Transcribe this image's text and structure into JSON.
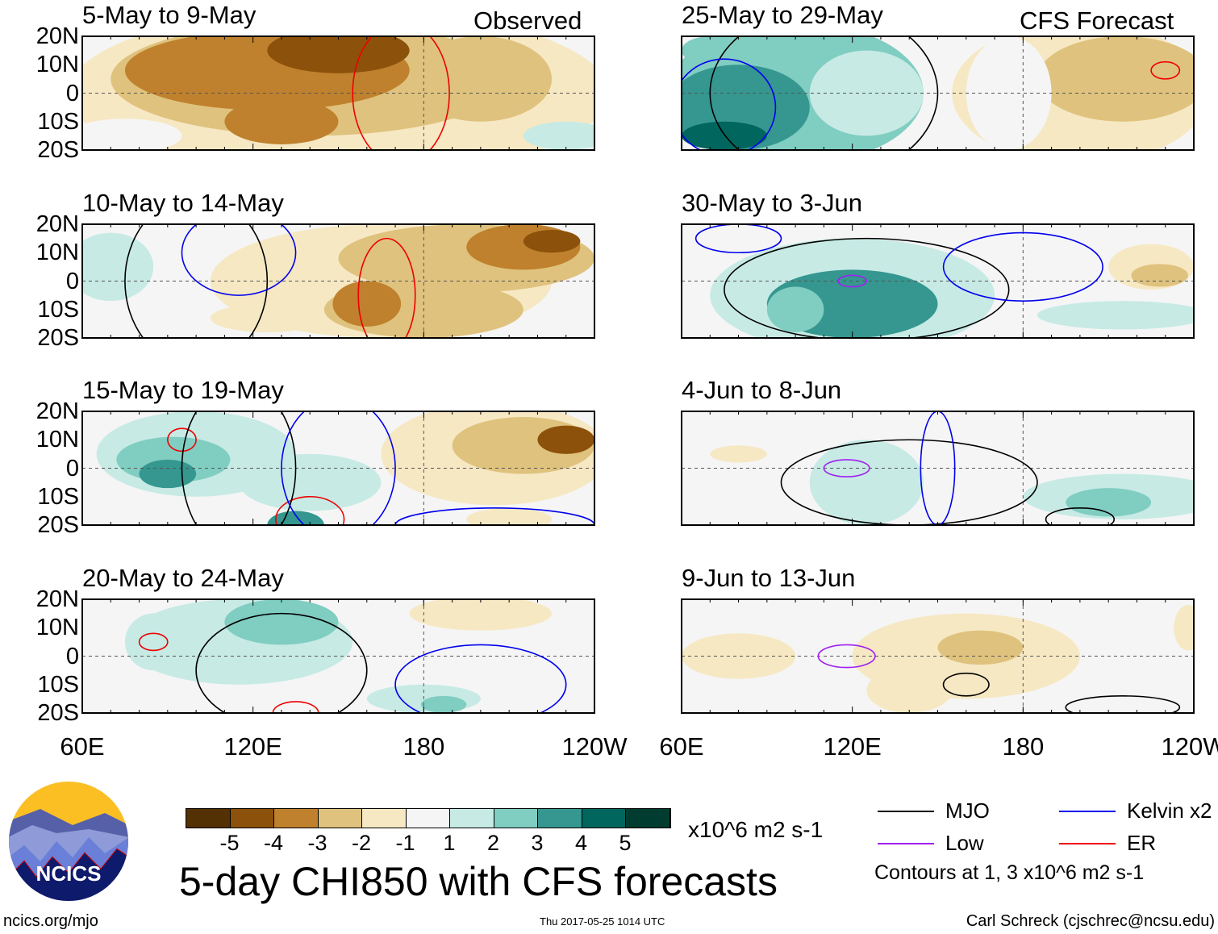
{
  "colors": [
    "#543005",
    "#8c510a",
    "#bf812d",
    "#dfc27d",
    "#f6e8c3",
    "#f5f5f5",
    "#c7eae5",
    "#80cdc1",
    "#35978f",
    "#01665e",
    "#003c30"
  ],
  "contour_colors": {
    "mjo": "#000000",
    "kelvin": "#0000ee",
    "low": "#a020f0",
    "er": "#ee0000"
  },
  "column_labels": {
    "left": "Observed",
    "right": "CFS Forecast"
  },
  "lat_labels": [
    "20N",
    "10N",
    "0",
    "10S",
    "20S"
  ],
  "lon_labels": [
    "60E",
    "120E",
    "180",
    "120W"
  ],
  "panels": [
    {
      "title": "5-May to 9-May",
      "blobs": [
        [
          150,
          0,
          95,
          30,
          4
        ],
        [
          140,
          5,
          70,
          20,
          3
        ],
        [
          125,
          8,
          50,
          14,
          2
        ],
        [
          150,
          15,
          25,
          8,
          1
        ],
        [
          130,
          -10,
          20,
          8,
          2
        ],
        [
          200,
          5,
          25,
          15,
          3
        ],
        [
          75,
          -15,
          20,
          6,
          5
        ],
        [
          230,
          -15,
          15,
          5,
          6
        ]
      ],
      "contours": [
        [
          172,
          0,
          17,
          25,
          "er"
        ]
      ]
    },
    {
      "title": "10-May to 14-May",
      "blobs": [
        [
          70,
          5,
          15,
          12,
          6
        ],
        [
          165,
          0,
          60,
          20,
          4
        ],
        [
          195,
          8,
          45,
          12,
          3
        ],
        [
          180,
          -10,
          35,
          10,
          3
        ],
        [
          215,
          12,
          20,
          8,
          2
        ],
        [
          225,
          14,
          10,
          4,
          1
        ],
        [
          125,
          -13,
          20,
          5,
          4
        ],
        [
          160,
          -8,
          12,
          8,
          2
        ]
      ],
      "contours": [
        [
          100,
          0,
          25,
          30,
          "mjo"
        ],
        [
          115,
          10,
          20,
          15,
          "kelvin"
        ],
        [
          167,
          -5,
          10,
          20,
          "er"
        ]
      ]
    },
    {
      "title": "15-May to 19-May",
      "blobs": [
        [
          100,
          5,
          35,
          15,
          6
        ],
        [
          92,
          3,
          20,
          8,
          7
        ],
        [
          90,
          -2,
          10,
          5,
          8
        ],
        [
          140,
          -5,
          25,
          10,
          6
        ],
        [
          135,
          -20,
          10,
          5,
          8
        ],
        [
          205,
          5,
          40,
          18,
          4
        ],
        [
          215,
          8,
          25,
          10,
          3
        ],
        [
          230,
          10,
          10,
          5,
          1
        ],
        [
          210,
          -18,
          15,
          4,
          4
        ]
      ],
      "contours": [
        [
          95,
          10,
          5,
          4,
          "er"
        ],
        [
          140,
          -18,
          12,
          8,
          "er"
        ],
        [
          115,
          0,
          20,
          30,
          "mjo"
        ],
        [
          150,
          0,
          20,
          25,
          "kelvin"
        ],
        [
          205,
          -20,
          35,
          6,
          "kelvin"
        ]
      ]
    },
    {
      "title": "20-May to 24-May",
      "blobs": [
        [
          115,
          5,
          40,
          15,
          6
        ],
        [
          130,
          12,
          20,
          8,
          7
        ],
        [
          85,
          5,
          10,
          10,
          6
        ],
        [
          180,
          -15,
          20,
          5,
          6
        ],
        [
          187,
          -17,
          8,
          3,
          7
        ],
        [
          200,
          15,
          25,
          6,
          4
        ]
      ],
      "contours": [
        [
          85,
          5,
          5,
          3,
          "er"
        ],
        [
          135,
          -20,
          8,
          4,
          "er"
        ],
        [
          200,
          -10,
          30,
          14,
          "kelvin"
        ],
        [
          130,
          -5,
          30,
          20,
          "mjo"
        ]
      ]
    },
    {
      "title": "25-May to 29-May",
      "blobs": [
        [
          200,
          0,
          45,
          25,
          4
        ],
        [
          215,
          5,
          30,
          15,
          3
        ],
        [
          100,
          0,
          45,
          25,
          7
        ],
        [
          80,
          -5,
          25,
          15,
          8
        ],
        [
          75,
          -15,
          15,
          5,
          9
        ],
        [
          125,
          0,
          20,
          15,
          6
        ],
        [
          175,
          0,
          15,
          20,
          5
        ],
        [
          70,
          15,
          10,
          5,
          7
        ]
      ],
      "contours": [
        [
          110,
          0,
          40,
          30,
          "mjo"
        ],
        [
          75,
          -5,
          18,
          17,
          "kelvin"
        ],
        [
          230,
          8,
          5,
          3,
          "er"
        ]
      ]
    },
    {
      "title": "30-May to 3-Jun",
      "blobs": [
        [
          120,
          -5,
          50,
          20,
          6
        ],
        [
          120,
          -8,
          30,
          12,
          8
        ],
        [
          100,
          -10,
          10,
          8,
          7
        ],
        [
          225,
          5,
          15,
          8,
          4
        ],
        [
          228,
          2,
          10,
          4,
          3
        ],
        [
          215,
          -12,
          30,
          5,
          6
        ]
      ],
      "contours": [
        [
          125,
          -3,
          50,
          18,
          "mjo"
        ],
        [
          120,
          0,
          5,
          2,
          "low"
        ],
        [
          80,
          15,
          15,
          5,
          "kelvin"
        ],
        [
          180,
          5,
          28,
          12,
          "kelvin"
        ]
      ]
    },
    {
      "title": "4-Jun to 8-Jun",
      "blobs": [
        [
          80,
          5,
          10,
          3,
          4
        ],
        [
          125,
          -5,
          20,
          15,
          6
        ],
        [
          215,
          -10,
          35,
          8,
          6
        ],
        [
          210,
          -12,
          15,
          5,
          7
        ]
      ],
      "contours": [
        [
          140,
          -5,
          45,
          15,
          "mjo"
        ],
        [
          118,
          0,
          8,
          3,
          "low"
        ],
        [
          150,
          0,
          6,
          20,
          "kelvin"
        ],
        [
          200,
          -18,
          12,
          4,
          "mjo"
        ]
      ]
    },
    {
      "title": "9-Jun to 13-Jun",
      "blobs": [
        [
          160,
          0,
          40,
          15,
          4
        ],
        [
          165,
          3,
          15,
          6,
          3
        ],
        [
          140,
          -12,
          15,
          8,
          4
        ],
        [
          80,
          0,
          20,
          8,
          4
        ],
        [
          238,
          10,
          5,
          8,
          4
        ]
      ],
      "contours": [
        [
          118,
          0,
          10,
          4,
          "low"
        ],
        [
          160,
          -10,
          8,
          4,
          "mjo"
        ],
        [
          215,
          -18,
          20,
          4,
          "mjo"
        ]
      ]
    }
  ],
  "colorbar": {
    "ticks": [
      "-5",
      "-4",
      "-3",
      "-2",
      "-1",
      "1",
      "2",
      "3",
      "4",
      "5"
    ],
    "units": "x10^6 m2 s-1"
  },
  "main_title": "5-day CHI850 with CFS forecasts",
  "legend": {
    "mjo": "MJO",
    "kelvin": "Kelvin x2",
    "low": "Low",
    "er": "ER",
    "note": "Contours at 1, 3 x10^6 m2 s-1"
  },
  "logo_text": "NCICS",
  "footer": {
    "url": "ncics.org/mjo",
    "timestamp": "Thu 2017-05-25 1014 UTC",
    "author": "Carl Schreck (cjschrec@ncsu.edu)"
  }
}
